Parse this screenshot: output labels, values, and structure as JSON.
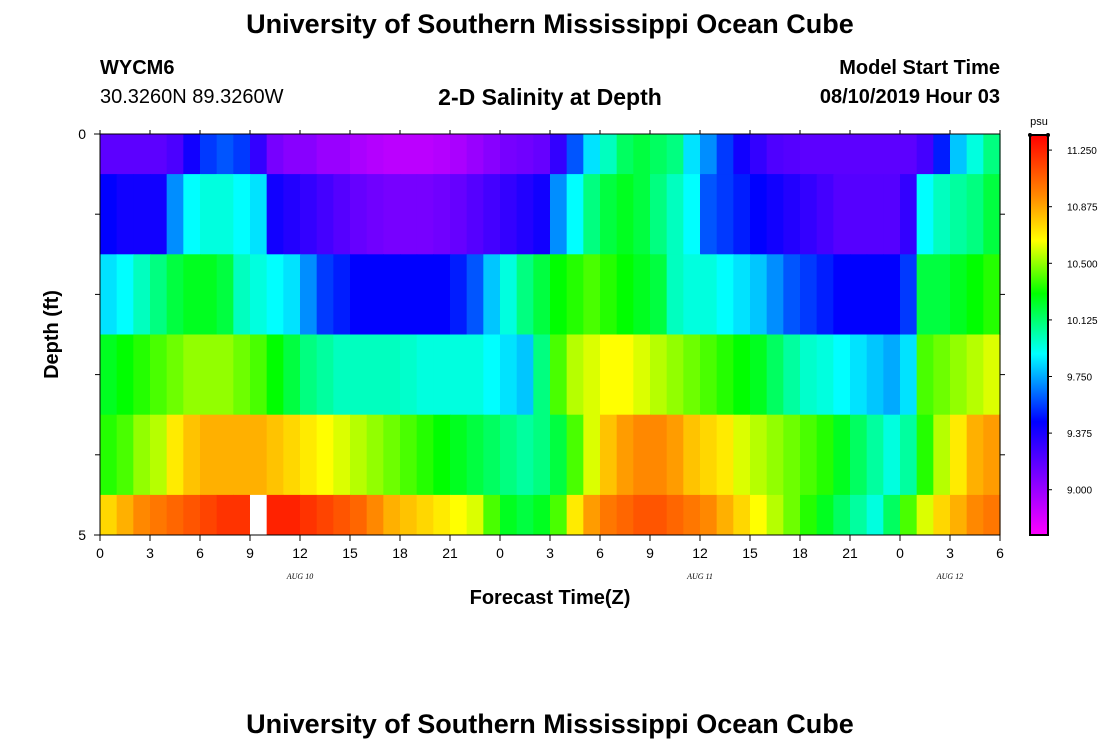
{
  "header": {
    "title": "University of Southern Mississippi Ocean Cube",
    "station_id": "WYCM6",
    "station_location": "30.3260N 89.3260W",
    "chart_title": "2-D Salinity at Depth",
    "model_start_label": "Model Start Time",
    "model_start_value": "08/10/2019 Hour 03"
  },
  "footer": {
    "title": "University of Southern Mississippi Ocean Cube"
  },
  "chart_data": {
    "type": "heatmap",
    "title": "2-D Salinity at Depth",
    "xlabel": "Forecast Time(Z)",
    "ylabel": "Depth (ft)",
    "x_tick_labels": [
      "0",
      "3",
      "6",
      "9",
      "12",
      "15",
      "18",
      "21",
      "0",
      "3",
      "6",
      "9",
      "12",
      "15",
      "18",
      "21",
      "0",
      "3",
      "6"
    ],
    "x_hours": [
      0,
      3,
      6,
      9,
      12,
      15,
      18,
      21,
      24,
      27,
      30,
      33,
      36,
      39,
      42,
      45,
      48,
      51,
      54
    ],
    "x_range_hours": [
      0,
      54
    ],
    "date_labels": [
      {
        "label": "AUG 10",
        "hour": 12
      },
      {
        "label": "AUG 11",
        "hour": 36
      },
      {
        "label": "AUG 12",
        "hour": 51
      }
    ],
    "y_range": [
      0,
      5
    ],
    "y_tick_labels": [
      {
        "label": "0",
        "value": 0
      },
      {
        "label": "5",
        "value": 5
      }
    ],
    "y_minor_ticks": [
      1,
      2,
      3,
      4
    ],
    "depth_bands": [
      {
        "top": 0.0,
        "bottom": 0.5
      },
      {
        "top": 0.5,
        "bottom": 1.5
      },
      {
        "top": 1.5,
        "bottom": 2.5
      },
      {
        "top": 2.5,
        "bottom": 3.5
      },
      {
        "top": 3.5,
        "bottom": 4.5
      },
      {
        "top": 4.5,
        "bottom": 5.0
      }
    ],
    "time_step_hours": 1,
    "salinity_grid": [
      [
        9.18,
        9.18,
        9.18,
        9.18,
        9.23,
        9.4,
        9.55,
        9.6,
        9.55,
        9.3,
        9.1,
        9.05,
        9.05,
        9.0,
        9.0,
        8.95,
        8.92,
        8.9,
        8.9,
        8.9,
        8.92,
        8.95,
        9.0,
        9.05,
        9.1,
        9.12,
        9.15,
        9.3,
        9.6,
        9.85,
        10.0,
        10.15,
        10.2,
        10.15,
        10.1,
        9.85,
        9.7,
        9.55,
        9.4,
        9.3,
        9.22,
        9.2,
        9.18,
        9.18,
        9.18,
        9.18,
        9.18,
        9.18,
        9.18,
        9.25,
        9.5,
        9.8,
        9.95,
        10.1
      ],
      [
        9.45,
        9.4,
        9.4,
        9.4,
        9.7,
        9.9,
        9.95,
        9.95,
        9.9,
        9.85,
        9.4,
        9.35,
        9.3,
        9.25,
        9.2,
        9.15,
        9.12,
        9.1,
        9.1,
        9.1,
        9.12,
        9.15,
        9.2,
        9.25,
        9.3,
        9.35,
        9.4,
        9.7,
        9.9,
        10.1,
        10.2,
        10.25,
        10.2,
        10.1,
        10.0,
        9.9,
        9.6,
        9.55,
        9.5,
        9.45,
        9.4,
        9.35,
        9.3,
        9.25,
        9.2,
        9.2,
        9.2,
        9.2,
        9.3,
        9.9,
        10.0,
        10.05,
        10.1,
        10.2
      ],
      [
        9.85,
        9.9,
        10.0,
        10.1,
        10.2,
        10.25,
        10.25,
        10.2,
        10.0,
        9.95,
        9.9,
        9.85,
        9.7,
        9.55,
        9.5,
        9.45,
        9.45,
        9.45,
        9.45,
        9.45,
        9.45,
        9.5,
        9.6,
        9.8,
        9.95,
        10.1,
        10.2,
        10.3,
        10.35,
        10.4,
        10.35,
        10.3,
        10.25,
        10.2,
        10.0,
        9.95,
        9.95,
        9.9,
        9.85,
        9.8,
        9.7,
        9.6,
        9.55,
        9.5,
        9.45,
        9.45,
        9.45,
        9.45,
        9.55,
        10.2,
        10.2,
        10.25,
        10.3,
        10.35
      ],
      [
        10.25,
        10.3,
        10.35,
        10.4,
        10.45,
        10.5,
        10.5,
        10.5,
        10.45,
        10.4,
        10.3,
        10.2,
        10.1,
        10.05,
        10.0,
        10.0,
        10.0,
        10.0,
        9.98,
        9.95,
        9.95,
        9.95,
        9.95,
        9.9,
        9.85,
        9.8,
        10.1,
        10.4,
        10.55,
        10.6,
        10.65,
        10.65,
        10.6,
        10.55,
        10.5,
        10.45,
        10.4,
        10.35,
        10.3,
        10.25,
        10.15,
        10.05,
        9.98,
        9.95,
        9.9,
        9.85,
        9.8,
        9.75,
        9.85,
        10.4,
        10.45,
        10.5,
        10.55,
        10.6
      ],
      [
        10.35,
        10.4,
        10.5,
        10.55,
        10.7,
        10.8,
        10.85,
        10.85,
        10.85,
        10.85,
        10.8,
        10.75,
        10.7,
        10.65,
        10.6,
        10.55,
        10.5,
        10.45,
        10.4,
        10.35,
        10.3,
        10.25,
        10.2,
        10.15,
        10.1,
        10.05,
        10.1,
        10.2,
        10.4,
        10.6,
        10.8,
        10.9,
        10.95,
        10.95,
        10.9,
        10.8,
        10.75,
        10.7,
        10.6,
        10.55,
        10.5,
        10.45,
        10.4,
        10.35,
        10.25,
        10.15,
        10.05,
        9.95,
        10.05,
        10.35,
        10.55,
        10.7,
        10.85,
        10.9
      ],
      [
        10.75,
        10.85,
        10.95,
        11.0,
        11.05,
        11.1,
        11.15,
        11.2,
        11.2,
        null,
        11.25,
        11.25,
        11.2,
        11.15,
        11.1,
        11.05,
        10.95,
        10.85,
        10.8,
        10.75,
        10.7,
        10.65,
        10.6,
        10.4,
        10.25,
        10.2,
        10.25,
        10.4,
        10.7,
        10.9,
        11.0,
        11.05,
        11.1,
        11.1,
        11.05,
        11.0,
        10.95,
        10.85,
        10.75,
        10.65,
        10.55,
        10.45,
        10.35,
        10.25,
        10.15,
        10.05,
        9.95,
        10.15,
        10.4,
        10.6,
        10.75,
        10.85,
        10.95,
        11.0
      ]
    ],
    "colorbar": {
      "unit": "psu",
      "tick_labels": [
        "11.250",
        "10.875",
        "10.500",
        "10.125",
        "9.750",
        "9.375",
        "9.000"
      ],
      "tick_values": [
        11.25,
        10.875,
        10.5,
        10.125,
        9.75,
        9.375,
        9.0
      ],
      "range": [
        8.7,
        11.35
      ],
      "colors": [
        "#ff00ff",
        "#8800ff",
        "#0000ff",
        "#00ffff",
        "#00ff00",
        "#ffff00",
        "#ff8800",
        "#ff0000"
      ],
      "color_stops": [
        8.7,
        9.05,
        9.45,
        9.9,
        10.3,
        10.65,
        10.95,
        11.35
      ]
    }
  }
}
